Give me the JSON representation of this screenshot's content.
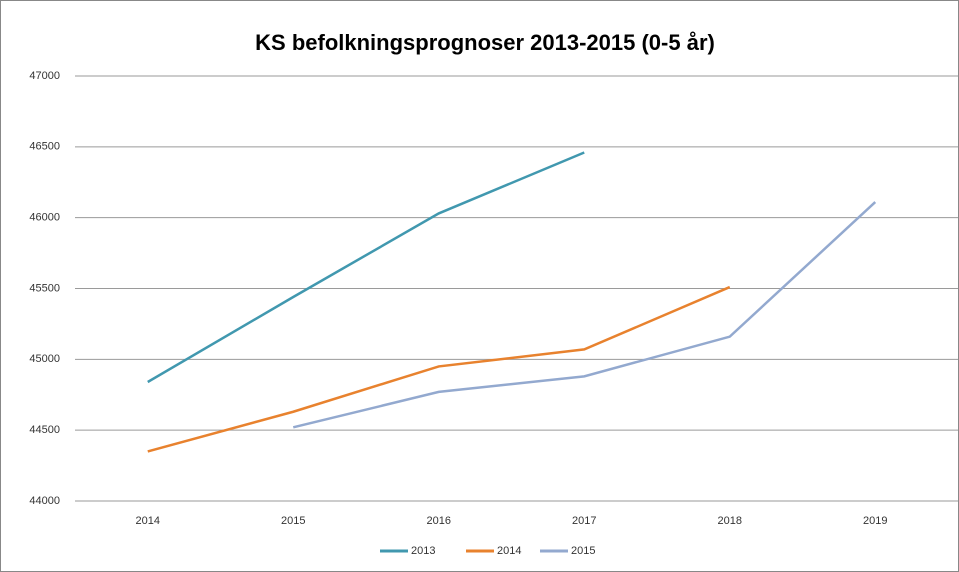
{
  "chart_data": {
    "type": "line",
    "title": "KS befolkningsprognoser 2013-2015 (0-5 år)",
    "categories": [
      "2014",
      "2015",
      "2016",
      "2017",
      "2018",
      "2019"
    ],
    "series": [
      {
        "name": "2013",
        "color": "#4198af",
        "values": [
          44840,
          45440,
          46030,
          46460,
          null,
          null
        ]
      },
      {
        "name": "2014",
        "color": "#e8822e",
        "values": [
          44350,
          44630,
          44950,
          45070,
          45510,
          null
        ]
      },
      {
        "name": "2015",
        "color": "#93a9cf",
        "values": [
          null,
          44520,
          44770,
          44880,
          45160,
          46110
        ]
      }
    ],
    "ylim": [
      44000,
      47000
    ],
    "yticks": [
      44000,
      44500,
      45000,
      45500,
      46000,
      46500,
      47000
    ],
    "grid": true,
    "legend": "bottom"
  }
}
